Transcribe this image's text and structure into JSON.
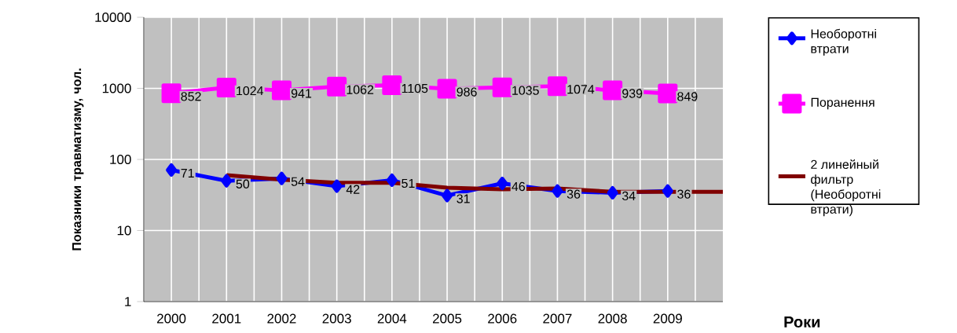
{
  "chart_data": {
    "type": "line",
    "ylabel": "Показники травматизму, чол.",
    "xlabel": "Роки",
    "categories": [
      "2000",
      "2001",
      "2002",
      "2003",
      "2004",
      "2005",
      "2006",
      "2007",
      "2008",
      "2009",
      null
    ],
    "series": [
      {
        "name": "Необоротні втрати",
        "color": "#0000ff",
        "marker": "diamond",
        "data_labels": true,
        "values": [
          71,
          50,
          54,
          42,
          51,
          31,
          46,
          36,
          34,
          36,
          null
        ]
      },
      {
        "name": "Поранення",
        "color": "#ff00ff",
        "marker": "square",
        "data_labels": true,
        "values": [
          852,
          1024,
          941,
          1062,
          1105,
          986,
          1035,
          1074,
          939,
          849,
          null
        ]
      },
      {
        "name": "2 линейный фильтр (Необоротні втрати)",
        "color": "#800000",
        "marker": "none",
        "values": [
          null,
          60,
          52,
          47,
          47,
          40,
          38,
          39,
          35,
          35,
          35
        ]
      }
    ],
    "log": "y",
    "ylim": [
      1,
      10000
    ],
    "yticks": [
      1,
      10,
      100,
      1000,
      10000
    ],
    "grid": true,
    "legend": "right"
  }
}
